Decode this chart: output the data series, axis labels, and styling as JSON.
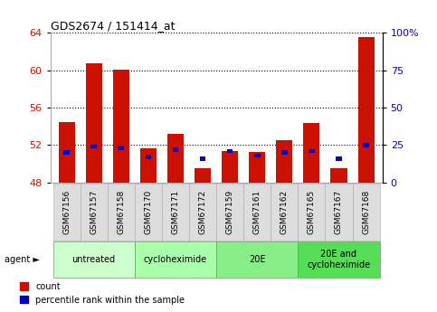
{
  "title": "GDS2674 / 151414_at",
  "samples": [
    "GSM67156",
    "GSM67157",
    "GSM67158",
    "GSM67170",
    "GSM67171",
    "GSM67172",
    "GSM67159",
    "GSM67161",
    "GSM67162",
    "GSM67165",
    "GSM67167",
    "GSM67168"
  ],
  "count_values": [
    54.5,
    60.7,
    60.1,
    51.7,
    53.2,
    49.5,
    51.4,
    51.3,
    52.5,
    54.4,
    49.5,
    63.5
  ],
  "percentile_values": [
    20,
    24,
    23,
    17,
    22,
    16,
    21,
    18,
    20,
    21,
    16,
    25
  ],
  "y_left_min": 48,
  "y_left_max": 64,
  "y_right_min": 0,
  "y_right_max": 100,
  "y_left_ticks": [
    48,
    52,
    56,
    60,
    64
  ],
  "y_right_ticks": [
    0,
    25,
    50,
    75,
    100
  ],
  "y_right_tick_labels": [
    "0",
    "25",
    "50",
    "75",
    "100%"
  ],
  "bar_color": "#cc1100",
  "percentile_color": "#0000cc",
  "agent_groups": [
    {
      "label": "untreated",
      "start": 0,
      "end": 3,
      "color": "#ccffcc"
    },
    {
      "label": "cycloheximide",
      "start": 3,
      "end": 6,
      "color": "#aaffaa"
    },
    {
      "label": "20E",
      "start": 6,
      "end": 9,
      "color": "#88ee88"
    },
    {
      "label": "20E and\ncycloheximide",
      "start": 9,
      "end": 12,
      "color": "#55dd55"
    }
  ],
  "legend_count_label": "count",
  "legend_percentile_label": "percentile rank within the sample",
  "agent_label": "agent ►",
  "background_color": "#ffffff",
  "tick_label_color_left": "#cc1100",
  "tick_label_color_right": "#0000cc",
  "xtick_bg_color": "#dddddd",
  "bar_width": 0.6,
  "x_data_min": -0.6,
  "x_data_max": 11.6
}
